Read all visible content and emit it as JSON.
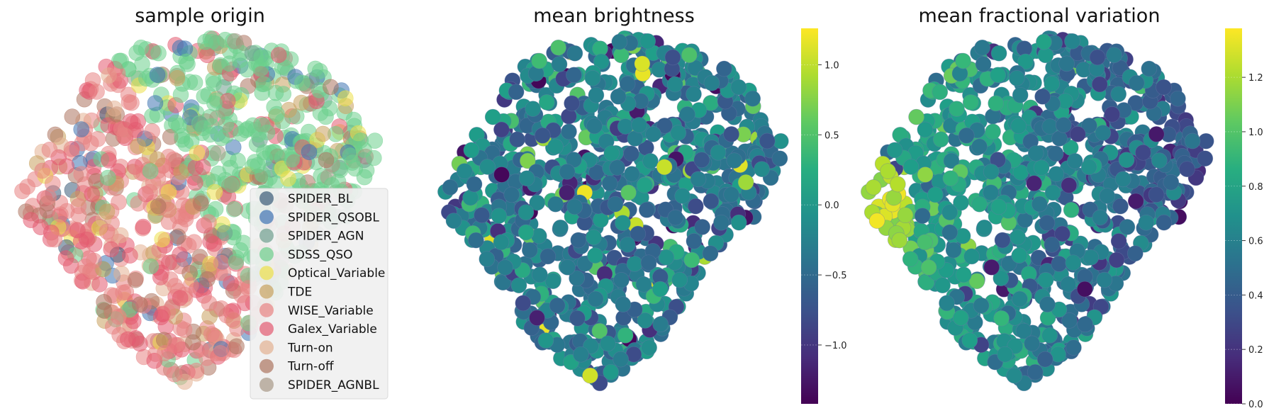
{
  "figure": {
    "panels": [
      {
        "title": "sample origin"
      },
      {
        "title": "mean brightness"
      },
      {
        "title": "mean fractional variation"
      }
    ]
  },
  "legend": {
    "entries": [
      {
        "label": "SPIDER_BL",
        "color": "#3b5b78"
      },
      {
        "label": "SPIDER_QSOBL",
        "color": "#3f74b3"
      },
      {
        "label": "SPIDER_AGN",
        "color": "#6f9e8e"
      },
      {
        "label": "SDSS_QSO",
        "color": "#6ccf8c"
      },
      {
        "label": "Optical_Variable",
        "color": "#ede04a"
      },
      {
        "label": "TDE",
        "color": "#c8a15e"
      },
      {
        "label": "WISE_Variable",
        "color": "#e88383"
      },
      {
        "label": "Galex_Variable",
        "color": "#e35a70"
      },
      {
        "label": "Turn-on",
        "color": "#e3b092"
      },
      {
        "label": "Turn-off",
        "color": "#ad7560"
      },
      {
        "label": "SPIDER_AGNBL",
        "color": "#a89987"
      }
    ]
  },
  "colorbars": [
    {
      "ticks": [
        "1.0",
        "0.5",
        "0.0",
        "−0.5",
        "−1.0"
      ],
      "tick_values": [
        1.0,
        0.5,
        0.0,
        -0.5,
        -1.0
      ],
      "range": [
        -1.42,
        1.26
      ],
      "colormap": "viridis"
    },
    {
      "ticks": [
        "1.2",
        "1.0",
        "0.8",
        "0.6",
        "0.4",
        "0.2",
        "0.0"
      ],
      "tick_values": [
        1.2,
        1.0,
        0.8,
        0.6,
        0.4,
        0.2,
        0.0
      ],
      "range": [
        0.0,
        1.38
      ],
      "colormap": "viridis"
    }
  ],
  "chart_data": [
    {
      "type": "scatter",
      "title": "sample origin",
      "xlabel": "",
      "ylabel": "",
      "axes_visible": false,
      "grid": false,
      "legend_position": "lower-right",
      "series_by_category": true,
      "dominant_regions": {
        "SDSS_QSO": "upper-right",
        "WISE_Variable": "lower-left",
        "Galex_Variable": "lower-left"
      },
      "approx_point_count": 900
    },
    {
      "type": "scatter",
      "title": "mean brightness",
      "color_by": "mean brightness",
      "color_range": [
        -1.42,
        1.26
      ],
      "typical_value": -0.3,
      "axes_visible": false,
      "colorbar": "right",
      "approx_point_count": 900
    },
    {
      "type": "scatter",
      "title": "mean fractional variation",
      "color_by": "mean fractional variation",
      "color_range": [
        0.0,
        1.38
      ],
      "typical_value": 0.75,
      "trend": "higher values on left side",
      "axes_visible": false,
      "colorbar": "right",
      "approx_point_count": 900
    }
  ]
}
